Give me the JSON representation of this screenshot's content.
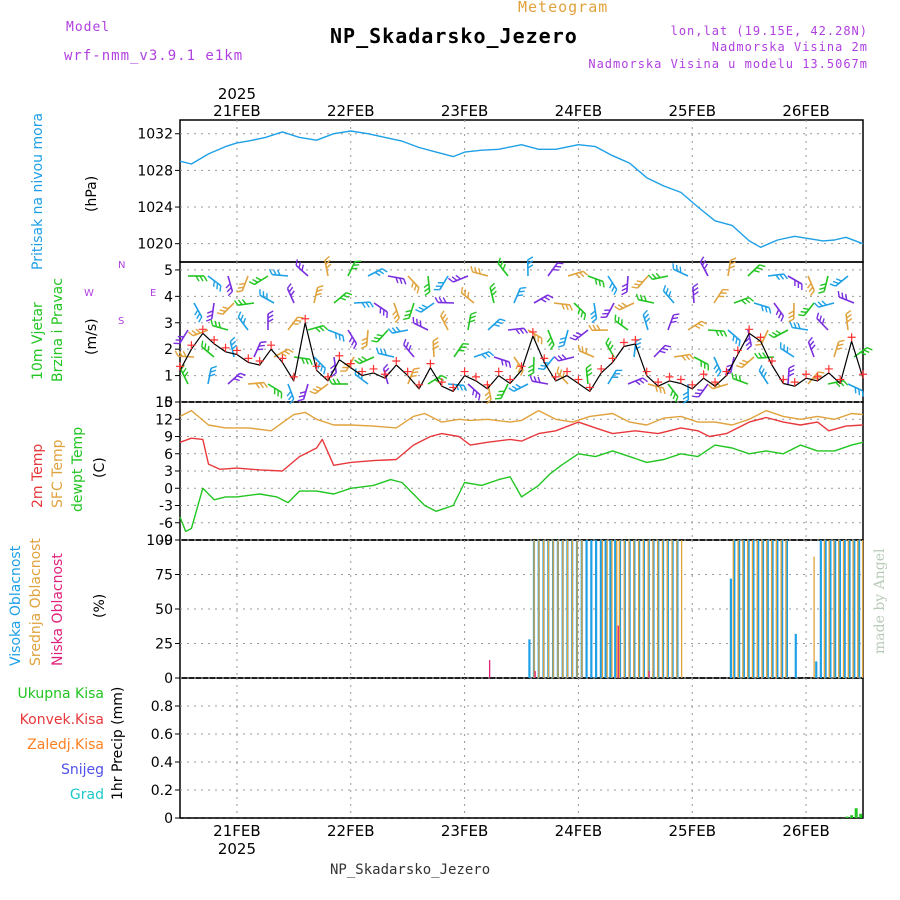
{
  "header": {
    "meteogram_label": "Meteogram",
    "station_title": "NP_Skadarsko_Jezero",
    "model_label": "Model",
    "model_name": "wrf-nmm_v3.9.1  e1km",
    "coords": "lon,lat (19.15E, 42.28N)",
    "altitude": "Nadmorska Visina 2m",
    "model_altitude": "Nadmorska Visina u modelu 13.5067m"
  },
  "footer": {
    "station_name": "NP_Skadarsko_Jezero",
    "credit": "made by Angel"
  },
  "colors": {
    "pressure": "#1ea0e6",
    "wind_speed": "#000000",
    "wind_gust_marks": "#ff3030",
    "temp2m": "#e8383c",
    "sfc_temp": "#e0a23c",
    "dewpoint": "#22c522",
    "high_cloud": "#1ea0e6",
    "mid_cloud": "#e0a23c",
    "low_cloud": "#e0207a",
    "precip_total": "#22c522",
    "precip_conv": "#e8383c",
    "precip_frozen": "#ff8020",
    "snow": "#5050e8",
    "graupel": "#20c8c8",
    "barbs": [
      "#22c522",
      "#1ea0e6",
      "#7a2ee0",
      "#e0a23c"
    ]
  },
  "chart_data": [
    {
      "type": "line",
      "panel": "pressure",
      "ylabel": [
        "Pritisak na nivou mora",
        "(hPa)"
      ],
      "ylim": [
        1018,
        1033.5
      ],
      "yticks": [
        1020,
        1024,
        1028,
        1032
      ],
      "xlim": [
        20.5,
        26.5
      ],
      "date_ticks": [
        21,
        22,
        23,
        24,
        25,
        26
      ],
      "date_labels": [
        "21FEB",
        "22FEB",
        "23FEB",
        "24FEB",
        "25FEB",
        "26FEB"
      ],
      "year_label": "2025",
      "grid": true,
      "series": [
        {
          "x": [
            20.5,
            20.6,
            20.75,
            20.9,
            21.0,
            21.1,
            21.25,
            21.4,
            21.55,
            21.7,
            21.85,
            22.0,
            22.15,
            22.3,
            22.45,
            22.6,
            22.75,
            22.9,
            23.0,
            23.15,
            23.3,
            23.5,
            23.65,
            23.8,
            24.0,
            24.15,
            24.3,
            24.45,
            24.6,
            24.75,
            24.9,
            25.05,
            25.2,
            25.35,
            25.5,
            25.6,
            25.75,
            25.9,
            26.0,
            26.15,
            26.25,
            26.35,
            26.5
          ],
          "values": [
            1029.0,
            1028.7,
            1029.8,
            1030.6,
            1031.0,
            1031.2,
            1031.6,
            1032.2,
            1031.6,
            1031.3,
            1032.0,
            1032.3,
            1032.0,
            1031.6,
            1031.2,
            1030.5,
            1030.0,
            1029.5,
            1030.0,
            1030.2,
            1030.3,
            1030.8,
            1030.3,
            1030.3,
            1030.8,
            1030.6,
            1029.6,
            1028.8,
            1027.2,
            1026.3,
            1025.6,
            1024.0,
            1022.5,
            1022.0,
            1020.3,
            1019.6,
            1020.4,
            1020.8,
            1020.6,
            1020.3,
            1020.4,
            1020.7,
            1020.0
          ]
        }
      ]
    },
    {
      "type": "line",
      "panel": "wind",
      "ylabel": [
        "10m Vjetar",
        "Brzina i Pravac",
        "(m/s)"
      ],
      "direction_legend": [
        "N",
        "W",
        "E",
        "S"
      ],
      "ylim": [
        0,
        5.3
      ],
      "yticks": [
        0,
        1,
        2,
        3,
        4,
        5
      ],
      "xlim": [
        20.5,
        26.5
      ],
      "series": [
        {
          "name": "wind speed",
          "x": [
            20.5,
            20.6,
            20.7,
            20.8,
            20.9,
            21.0,
            21.1,
            21.2,
            21.3,
            21.4,
            21.5,
            21.6,
            21.7,
            21.8,
            21.9,
            22.0,
            22.1,
            22.2,
            22.3,
            22.4,
            22.5,
            22.6,
            22.7,
            22.8,
            22.9,
            23.0,
            23.1,
            23.2,
            23.3,
            23.4,
            23.5,
            23.6,
            23.7,
            23.8,
            23.9,
            24.0,
            24.1,
            24.2,
            24.3,
            24.4,
            24.5,
            24.6,
            24.7,
            24.8,
            24.9,
            25.0,
            25.1,
            25.2,
            25.3,
            25.4,
            25.5,
            25.6,
            25.7,
            25.8,
            25.9,
            26.0,
            26.1,
            26.2,
            26.3,
            26.4,
            26.5
          ],
          "values": [
            1.2,
            2.0,
            2.6,
            2.2,
            1.9,
            1.8,
            1.5,
            1.4,
            2.0,
            1.5,
            0.8,
            3.0,
            1.2,
            0.8,
            1.6,
            1.3,
            1.0,
            1.1,
            0.9,
            1.4,
            1.0,
            0.5,
            1.3,
            0.6,
            0.4,
            1.0,
            0.8,
            0.5,
            1.0,
            0.7,
            1.2,
            2.5,
            1.5,
            0.8,
            1.0,
            0.7,
            0.4,
            1.1,
            1.5,
            2.1,
            2.2,
            1.0,
            0.6,
            0.8,
            0.7,
            0.5,
            0.9,
            0.6,
            1.0,
            1.8,
            2.6,
            2.3,
            1.4,
            0.7,
            0.6,
            0.9,
            0.8,
            1.1,
            0.7,
            2.3,
            0.9
          ]
        }
      ]
    },
    {
      "type": "line",
      "panel": "temperature",
      "ylabel": [
        "2m Temp",
        "SFC Temp",
        "dewpt Temp",
        "(C)"
      ],
      "ylim": [
        -9,
        15
      ],
      "yticks": [
        -9,
        -6,
        -3,
        0,
        3,
        6,
        9,
        12,
        15
      ],
      "xlim": [
        20.5,
        26.5
      ],
      "series": [
        {
          "name": "2m Temp",
          "x": [
            20.5,
            20.6,
            20.7,
            20.75,
            20.85,
            21.0,
            21.2,
            21.4,
            21.55,
            21.7,
            21.75,
            21.85,
            22.0,
            22.2,
            22.4,
            22.55,
            22.7,
            22.8,
            22.95,
            23.05,
            23.2,
            23.4,
            23.5,
            23.65,
            23.8,
            24.0,
            24.15,
            24.3,
            24.5,
            24.7,
            24.9,
            25.05,
            25.15,
            25.3,
            25.5,
            25.65,
            25.8,
            25.95,
            26.1,
            26.2,
            26.35,
            26.5
          ],
          "values": [
            8.0,
            8.7,
            8.5,
            4.2,
            3.3,
            3.5,
            3.2,
            3.0,
            5.5,
            7.0,
            8.5,
            4.0,
            4.5,
            4.8,
            5.0,
            7.5,
            9.0,
            9.5,
            9.0,
            7.5,
            8.0,
            8.5,
            8.2,
            9.5,
            10.0,
            11.5,
            10.5,
            9.5,
            10.0,
            9.5,
            10.5,
            10.0,
            9.0,
            9.5,
            11.5,
            12.3,
            11.5,
            11.0,
            11.5,
            10.0,
            10.8,
            11.0
          ]
        },
        {
          "name": "SFC Temp",
          "x": [
            20.5,
            20.6,
            20.75,
            20.9,
            21.1,
            21.3,
            21.5,
            21.6,
            21.7,
            21.85,
            22.0,
            22.2,
            22.4,
            22.55,
            22.65,
            22.8,
            22.95,
            23.05,
            23.2,
            23.4,
            23.5,
            23.65,
            23.8,
            23.95,
            24.1,
            24.3,
            24.45,
            24.6,
            24.75,
            24.9,
            25.05,
            25.2,
            25.35,
            25.5,
            25.65,
            25.8,
            25.95,
            26.1,
            26.25,
            26.4,
            26.5
          ],
          "values": [
            12.5,
            13.5,
            11.0,
            10.5,
            10.5,
            10.0,
            12.8,
            13.2,
            12.0,
            11.0,
            11.0,
            10.8,
            10.5,
            12.5,
            13.0,
            11.5,
            12.0,
            11.8,
            12.0,
            11.5,
            11.8,
            13.5,
            12.0,
            11.5,
            12.5,
            13.0,
            11.5,
            11.0,
            12.2,
            12.5,
            11.5,
            11.5,
            11.0,
            12.0,
            13.5,
            12.5,
            12.0,
            12.5,
            12.0,
            13.0,
            12.8
          ]
        },
        {
          "name": "dewpt Temp",
          "x": [
            20.5,
            20.55,
            20.6,
            20.7,
            20.8,
            20.9,
            21.0,
            21.2,
            21.35,
            21.45,
            21.55,
            21.7,
            21.85,
            22.0,
            22.2,
            22.35,
            22.45,
            22.55,
            22.65,
            22.75,
            22.9,
            23.0,
            23.15,
            23.3,
            23.4,
            23.5,
            23.65,
            23.75,
            23.85,
            24.0,
            24.15,
            24.3,
            24.45,
            24.6,
            24.75,
            24.9,
            25.05,
            25.2,
            25.35,
            25.5,
            25.65,
            25.8,
            25.95,
            26.1,
            26.25,
            26.4,
            26.5
          ],
          "values": [
            -5.0,
            -7.5,
            -7.0,
            0.0,
            -2.0,
            -1.5,
            -1.5,
            -1.0,
            -1.5,
            -2.5,
            -0.5,
            -0.5,
            -1.0,
            0.0,
            0.5,
            1.5,
            1.0,
            -1.0,
            -3.0,
            -4.0,
            -3.0,
            1.0,
            0.5,
            1.5,
            2.0,
            -1.5,
            0.5,
            2.5,
            4.0,
            6.0,
            5.5,
            6.5,
            5.5,
            4.5,
            5.0,
            6.0,
            5.5,
            7.5,
            7.0,
            6.0,
            6.5,
            6.0,
            7.5,
            6.5,
            6.5,
            7.5,
            8.0
          ]
        }
      ]
    },
    {
      "type": "bar",
      "panel": "cloud",
      "ylabel": [
        "Visoka Oblacnost",
        "Srednja Oblacnost",
        "Niska Oblacnost",
        "(%)"
      ],
      "ylim": [
        0,
        100
      ],
      "yticks": [
        0,
        25,
        50,
        75,
        100
      ],
      "xlim": [
        20.5,
        26.5
      ],
      "series": [
        {
          "name": "Visoka Oblacnost",
          "segments": [
            [
              23.58,
              23.62,
              28
            ],
            [
              23.62,
              24.92,
              100
            ],
            [
              25.35,
              25.38,
              72
            ],
            [
              25.38,
              25.85,
              100
            ],
            [
              25.92,
              25.94,
              32
            ],
            [
              26.1,
              26.12,
              12
            ],
            [
              26.14,
              26.5,
              100
            ]
          ]
        },
        {
          "name": "Srednja Oblacnost",
          "segments": [
            [
              23.6,
              24.05,
              100
            ],
            [
              24.2,
              24.35,
              100
            ],
            [
              24.35,
              24.9,
              100
            ],
            [
              25.35,
              25.84,
              100
            ],
            [
              26.06,
              26.08,
              88
            ],
            [
              26.15,
              26.5,
              100
            ]
          ]
        },
        {
          "name": "Niska Oblacnost",
          "segments": [
            [
              23.22,
              23.24,
              13
            ],
            [
              23.62,
              23.64,
              5
            ],
            [
              24.35,
              24.37,
              38
            ],
            [
              24.62,
              24.64,
              5
            ]
          ]
        }
      ]
    },
    {
      "type": "bar",
      "panel": "precip",
      "ylabel": [
        "1hr Precip (mm)"
      ],
      "legend": [
        "Ukupna Kisa",
        "Konvek.Kisa",
        "Zaledj.Kisa",
        "Snijeg",
        "Grad"
      ],
      "ylim": [
        0,
        1.0
      ],
      "yticks": [
        0,
        0.2,
        0.4,
        0.6,
        0.8
      ],
      "xlim": [
        20.5,
        26.5
      ],
      "series": [
        {
          "name": "Ukupna Kisa",
          "x": [
            26.36,
            26.4,
            26.44,
            26.48
          ],
          "values": [
            0.01,
            0.02,
            0.07,
            0.03
          ]
        }
      ]
    }
  ]
}
